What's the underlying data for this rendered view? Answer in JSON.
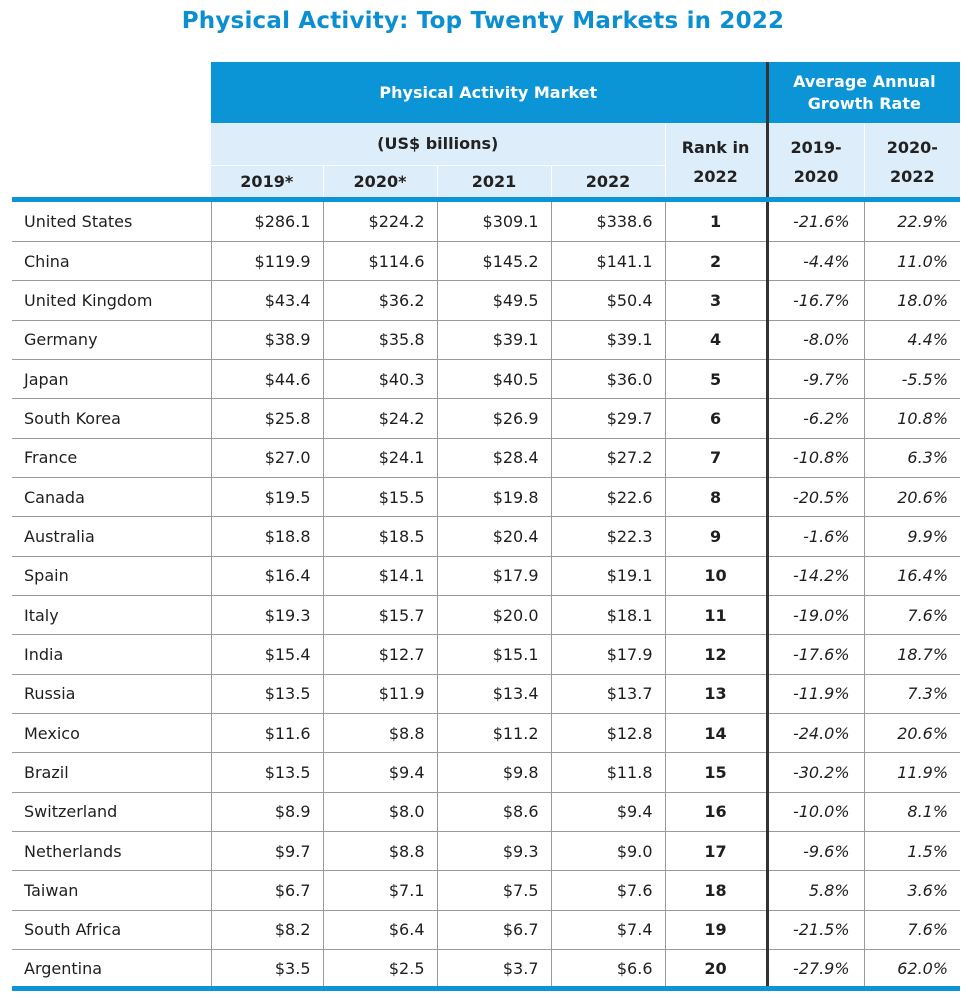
{
  "title": "Physical Activity: Top Twenty Markets in 2022",
  "header": {
    "market_group": "Physical Activity Market",
    "growth_group": "Average Annual Growth Rate",
    "units": "(US$ billions)",
    "rank_line1": "Rank in",
    "rank_line2": "2022",
    "years": [
      "2019*",
      "2020*",
      "2021",
      "2022"
    ],
    "growth_cols": [
      {
        "line1": "2019-",
        "line2": "2020"
      },
      {
        "line1": "2020-",
        "line2": "2022"
      }
    ]
  },
  "colors": {
    "accent": "#0c95d6",
    "header_light": "#ddeefa",
    "title": "#0c8fd0"
  },
  "chart_data": {
    "type": "table",
    "title": "Physical Activity: Top Twenty Markets in 2022",
    "columns": [
      "",
      "2019*",
      "2020*",
      "2021",
      "2022",
      "Rank in 2022",
      "2019-2020",
      "2020-2022"
    ],
    "rows": [
      {
        "country": "United States",
        "y2019": "$286.1",
        "y2020": "$224.2",
        "y2021": "$309.1",
        "y2022": "$338.6",
        "rank": "1",
        "g1": "-21.6%",
        "g2": "22.9%"
      },
      {
        "country": "China",
        "y2019": "$119.9",
        "y2020": "$114.6",
        "y2021": "$145.2",
        "y2022": "$141.1",
        "rank": "2",
        "g1": "-4.4%",
        "g2": "11.0%"
      },
      {
        "country": "United Kingdom",
        "y2019": "$43.4",
        "y2020": "$36.2",
        "y2021": "$49.5",
        "y2022": "$50.4",
        "rank": "3",
        "g1": "-16.7%",
        "g2": "18.0%"
      },
      {
        "country": "Germany",
        "y2019": "$38.9",
        "y2020": "$35.8",
        "y2021": "$39.1",
        "y2022": "$39.1",
        "rank": "4",
        "g1": "-8.0%",
        "g2": "4.4%"
      },
      {
        "country": "Japan",
        "y2019": "$44.6",
        "y2020": "$40.3",
        "y2021": "$40.5",
        "y2022": "$36.0",
        "rank": "5",
        "g1": "-9.7%",
        "g2": "-5.5%"
      },
      {
        "country": "South Korea",
        "y2019": "$25.8",
        "y2020": "$24.2",
        "y2021": "$26.9",
        "y2022": "$29.7",
        "rank": "6",
        "g1": "-6.2%",
        "g2": "10.8%"
      },
      {
        "country": "France",
        "y2019": "$27.0",
        "y2020": "$24.1",
        "y2021": "$28.4",
        "y2022": "$27.2",
        "rank": "7",
        "g1": "-10.8%",
        "g2": "6.3%"
      },
      {
        "country": "Canada",
        "y2019": "$19.5",
        "y2020": "$15.5",
        "y2021": "$19.8",
        "y2022": "$22.6",
        "rank": "8",
        "g1": "-20.5%",
        "g2": "20.6%"
      },
      {
        "country": "Australia",
        "y2019": "$18.8",
        "y2020": "$18.5",
        "y2021": "$20.4",
        "y2022": "$22.3",
        "rank": "9",
        "g1": "-1.6%",
        "g2": "9.9%"
      },
      {
        "country": "Spain",
        "y2019": "$16.4",
        "y2020": "$14.1",
        "y2021": "$17.9",
        "y2022": "$19.1",
        "rank": "10",
        "g1": "-14.2%",
        "g2": "16.4%"
      },
      {
        "country": "Italy",
        "y2019": "$19.3",
        "y2020": "$15.7",
        "y2021": "$20.0",
        "y2022": "$18.1",
        "rank": "11",
        "g1": "-19.0%",
        "g2": "7.6%"
      },
      {
        "country": "India",
        "y2019": "$15.4",
        "y2020": "$12.7",
        "y2021": "$15.1",
        "y2022": "$17.9",
        "rank": "12",
        "g1": "-17.6%",
        "g2": "18.7%"
      },
      {
        "country": "Russia",
        "y2019": "$13.5",
        "y2020": "$11.9",
        "y2021": "$13.4",
        "y2022": "$13.7",
        "rank": "13",
        "g1": "-11.9%",
        "g2": "7.3%"
      },
      {
        "country": "Mexico",
        "y2019": "$11.6",
        "y2020": "$8.8",
        "y2021": "$11.2",
        "y2022": "$12.8",
        "rank": "14",
        "g1": "-24.0%",
        "g2": "20.6%"
      },
      {
        "country": "Brazil",
        "y2019": "$13.5",
        "y2020": "$9.4",
        "y2021": "$9.8",
        "y2022": "$11.8",
        "rank": "15",
        "g1": "-30.2%",
        "g2": "11.9%"
      },
      {
        "country": "Switzerland",
        "y2019": "$8.9",
        "y2020": "$8.0",
        "y2021": "$8.6",
        "y2022": "$9.4",
        "rank": "16",
        "g1": "-10.0%",
        "g2": "8.1%"
      },
      {
        "country": "Netherlands",
        "y2019": "$9.7",
        "y2020": "$8.8",
        "y2021": "$9.3",
        "y2022": "$9.0",
        "rank": "17",
        "g1": "-9.6%",
        "g2": "1.5%"
      },
      {
        "country": "Taiwan",
        "y2019": "$6.7",
        "y2020": "$7.1",
        "y2021": "$7.5",
        "y2022": "$7.6",
        "rank": "18",
        "g1": "5.8%",
        "g2": "3.6%"
      },
      {
        "country": "South Africa",
        "y2019": "$8.2",
        "y2020": "$6.4",
        "y2021": "$6.7",
        "y2022": "$7.4",
        "rank": "19",
        "g1": "-21.5%",
        "g2": "7.6%"
      },
      {
        "country": "Argentina",
        "y2019": "$3.5",
        "y2020": "$2.5",
        "y2021": "$3.7",
        "y2022": "$6.6",
        "rank": "20",
        "g1": "-27.9%",
        "g2": "62.0%"
      }
    ]
  }
}
